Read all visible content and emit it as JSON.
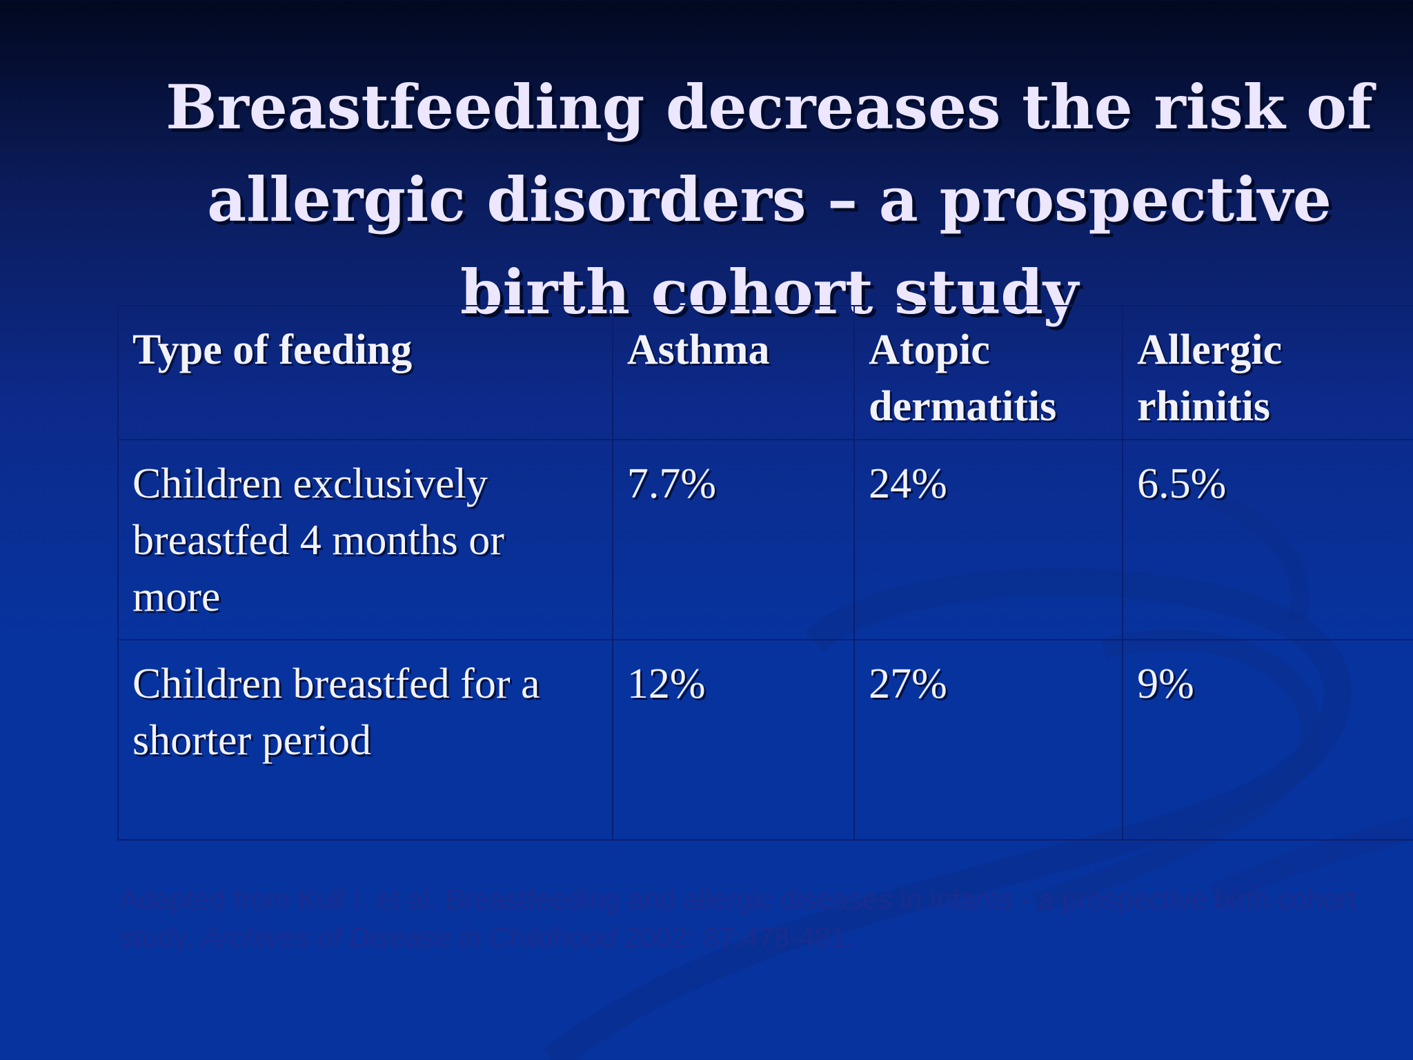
{
  "slide": {
    "title": "Breastfeeding decreases the risk of allergic disorders – a prospective birth cohort study"
  },
  "table": {
    "headers": [
      "Type of feeding",
      "Asthma",
      "Atopic dermatitis",
      "Allergic rhinitis"
    ],
    "rows": [
      [
        "Children exclusively breastfed 4 months or more",
        "7.7%",
        "24%",
        "6.5%"
      ],
      [
        "Children breastfed for a shorter period",
        "12%",
        "27%",
        "9%"
      ]
    ]
  },
  "citation": {
    "prefix": "Adapted from Kull I. et al. Breastfeeding and allergic diseases in infants - a prospective birth cohort study.",
    "journal": "Archives of Disease in Childhood",
    "suffix": "2002: 87:478-481."
  }
}
